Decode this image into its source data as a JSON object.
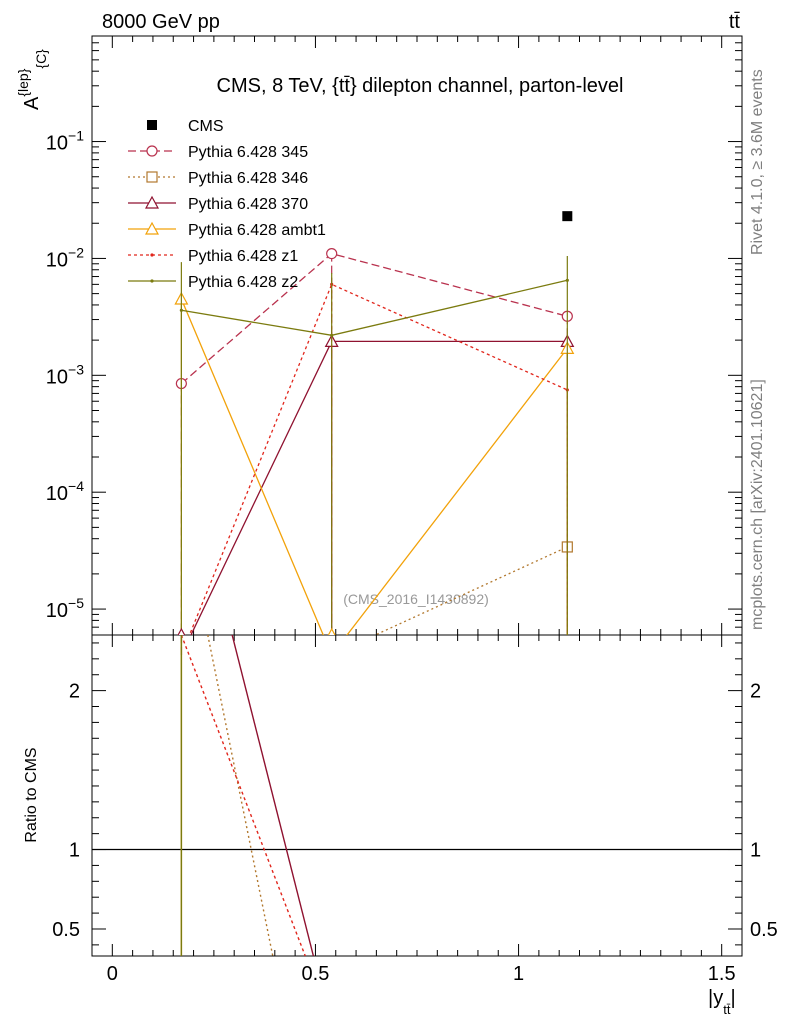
{
  "header": {
    "beam": "8000 GeV pp",
    "process": "tt̄",
    "plot_title": "CMS, 8 TeV, {tt̄} dilepton channel, parton-level",
    "watermark": "(CMS_2016_I1430892)",
    "side_top": "Rivet 4.1.0, ≥ 3.6M events",
    "side_bottom": "mcplots.cern.ch [arXiv:2401.10621]"
  },
  "chart_data": {
    "type": "line",
    "title": "CMS, 8 TeV, {tt̄} dilepton channel, parton-level",
    "ylabel": "A^{lep}_{C}",
    "ratio_ylabel": "Ratio to CMS",
    "xlabel": "|y_{tt̄}|",
    "yscale": "log",
    "xlim": [
      -0.05,
      1.55
    ],
    "ylim": [
      6e-06,
      0.8
    ],
    "ratio_ylim": [
      0.33,
      2.35
    ],
    "x_ticks": [
      0,
      0.5,
      1,
      1.5
    ],
    "x_tick_labels": [
      "0",
      "0.5",
      "1",
      "1.5"
    ],
    "y_ticks": [
      {
        "label": "10",
        "exp": "−1",
        "value": 0.1
      },
      {
        "label": "10",
        "exp": "−2",
        "value": 0.01
      },
      {
        "label": "10",
        "exp": "−3",
        "value": 0.001
      },
      {
        "label": "10",
        "exp": "−4",
        "value": 0.0001
      },
      {
        "label": "10",
        "exp": "−5",
        "value": 1e-05
      }
    ],
    "ratio_ticks": [
      {
        "label": "2",
        "value": 2
      },
      {
        "label": "1",
        "value": 1
      },
      {
        "label": "0.5",
        "value": 0.5
      }
    ],
    "x": [
      0.17,
      0.54,
      1.12
    ],
    "data": {
      "name": "CMS",
      "color": "#000000",
      "values": [
        null,
        null,
        0.023
      ]
    },
    "series": [
      {
        "name": "Pythia 6.428 345",
        "color": "#b9324e",
        "dash": "8,4",
        "marker": "circle",
        "values": [
          0.00085,
          0.011,
          0.0032
        ],
        "err_lo": [
          null,
          null,
          null
        ],
        "err_hi": [
          null,
          null,
          null
        ],
        "ratio": [
          [
            0.17,
            2.35
          ],
          [
            0.17,
            2.2
          ]
        ]
      },
      {
        "name": "Pythia 6.428 346",
        "color": "#b2782e",
        "dash": "2,3",
        "marker": "square",
        "values": [
          null,
          null,
          3.4e-05
        ],
        "err_lo": [
          null,
          null,
          null
        ],
        "err_hi": [
          null,
          null,
          null
        ],
        "ratio": [
          [
            0.235,
            2.35
          ],
          [
            0.395,
            0.33
          ]
        ]
      },
      {
        "name": "Pythia 6.428 370",
        "color": "#8f1230",
        "dash": "",
        "marker": "triangle",
        "values": [
          null,
          0.00195,
          0.00195
        ],
        "err_lo": [
          null,
          null,
          null
        ],
        "err_hi": [
          null,
          null,
          null
        ],
        "ratio": [
          [
            0.295,
            2.35
          ],
          [
            0.495,
            0.33
          ]
        ]
      },
      {
        "name": "Pythia 6.428 ambt1",
        "color": "#f2a20a",
        "dash": "",
        "marker": "triangle",
        "values": [
          0.0045,
          null,
          0.0017
        ],
        "err_lo": [
          null,
          null,
          null
        ],
        "err_hi": [
          null,
          null,
          null
        ],
        "ratio": []
      },
      {
        "name": "Pythia 6.428 z1",
        "color": "#e1261c",
        "dash": "3,3",
        "marker": "dot",
        "values": [
          null,
          0.006,
          0.00075
        ],
        "err_lo": [
          null,
          null,
          null
        ],
        "err_hi": [
          null,
          null,
          null
        ],
        "ratio": [
          [
            0.17,
            2.35
          ],
          [
            0.475,
            0.33
          ]
        ]
      },
      {
        "name": "Pythia 6.428 z2",
        "color": "#7b7b0f",
        "dash": "",
        "marker": "dot",
        "values": [
          0.0036,
          0.0022,
          0.0065
        ],
        "err_lo": [
          null,
          null,
          null
        ],
        "err_hi": [
          0.0093,
          0.0075,
          0.0105
        ],
        "ratio": []
      }
    ]
  }
}
